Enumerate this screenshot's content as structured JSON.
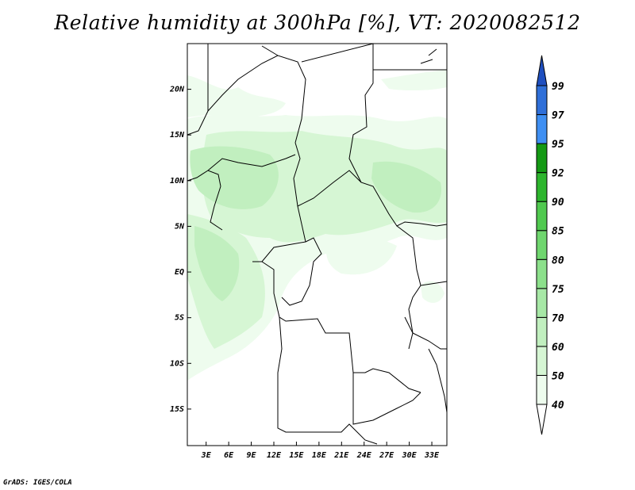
{
  "title": "Relative humidity at 300hPa [%], VT: 2020082512",
  "footer": "GrADS: IGES/COLA",
  "map": {
    "lat_range": [
      -19,
      25
    ],
    "lon_range": [
      0.5,
      35
    ],
    "lat_ticks": [
      {
        "value": 20,
        "label": "20N"
      },
      {
        "value": 15,
        "label": "15N"
      },
      {
        "value": 10,
        "label": "10N"
      },
      {
        "value": 5,
        "label": "5N"
      },
      {
        "value": 0,
        "label": "EQ"
      },
      {
        "value": -5,
        "label": "5S"
      },
      {
        "value": -10,
        "label": "10S"
      },
      {
        "value": -15,
        "label": "15S"
      }
    ],
    "lon_ticks": [
      {
        "value": 3,
        "label": "3E"
      },
      {
        "value": 6,
        "label": "6E"
      },
      {
        "value": 9,
        "label": "9E"
      },
      {
        "value": 12,
        "label": "12E"
      },
      {
        "value": 15,
        "label": "15E"
      },
      {
        "value": 18,
        "label": "18E"
      },
      {
        "value": 21,
        "label": "21E"
      },
      {
        "value": 24,
        "label": "24E"
      },
      {
        "value": 27,
        "label": "27E"
      },
      {
        "value": 30,
        "label": "30E"
      },
      {
        "value": 33,
        "label": "33E"
      }
    ]
  },
  "colorbar": {
    "levels": [
      "40",
      "50",
      "60",
      "70",
      "75",
      "80",
      "85",
      "90",
      "92",
      "95",
      "97",
      "99"
    ],
    "colors": [
      "#eefcee",
      "#d6f6d4",
      "#c1efbf",
      "#a7e8a6",
      "#8ce08b",
      "#6fd66e",
      "#50c94f",
      "#2db52d",
      "#149914",
      "#3f8ff2",
      "#2f6fd8",
      "#1f4fbf",
      "#113a9a"
    ]
  },
  "shading": {
    "light_color": "#eefcee",
    "mid_color": "#d6f6d4",
    "dark_color": "#c1efbf"
  }
}
